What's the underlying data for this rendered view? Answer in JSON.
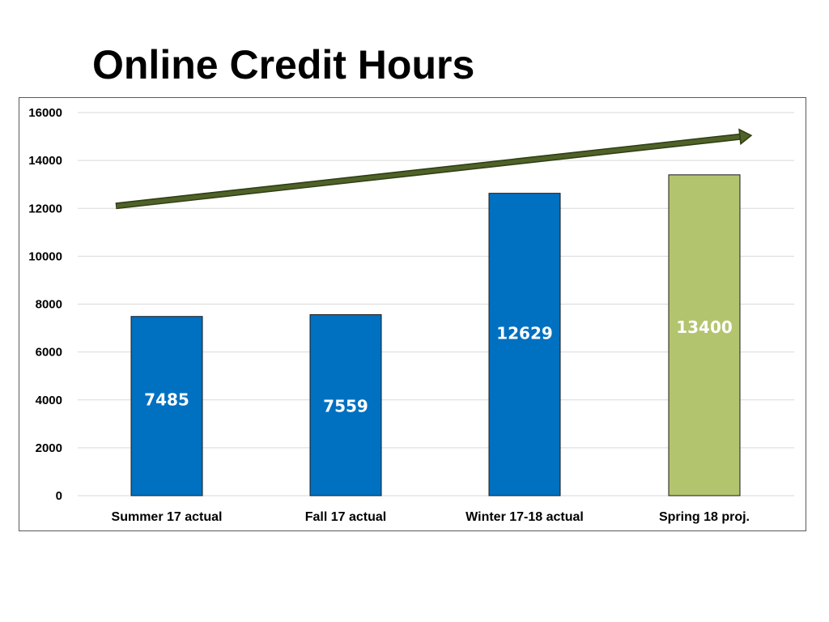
{
  "chart_data": {
    "type": "bar",
    "title": "Online Credit Hours",
    "xlabel": "",
    "ylabel": "",
    "categories": [
      "Summer 17 actual",
      "Fall 17 actual",
      "Winter 17-18 actual",
      "Spring 18 proj."
    ],
    "values": [
      7485,
      7559,
      12629,
      13400
    ],
    "data_labels": [
      "7485",
      "7559",
      "12629",
      "13400"
    ],
    "bar_colors": [
      "#0070C0",
      "#0070C0",
      "#0070C0",
      "#B3C46E"
    ],
    "ylim": [
      0,
      16000
    ],
    "yticks": [
      0,
      2000,
      4000,
      6000,
      8000,
      10000,
      12000,
      14000,
      16000
    ],
    "ytick_labels": [
      "0",
      "2000",
      "4000",
      "6000",
      "8000",
      "10000",
      "12000",
      "14000",
      "16000"
    ],
    "grid": true,
    "legend": "none",
    "annotations": [
      {
        "type": "trend-arrow",
        "from_value": 12000,
        "to_value": 15000,
        "color": "#4F6228"
      }
    ]
  }
}
